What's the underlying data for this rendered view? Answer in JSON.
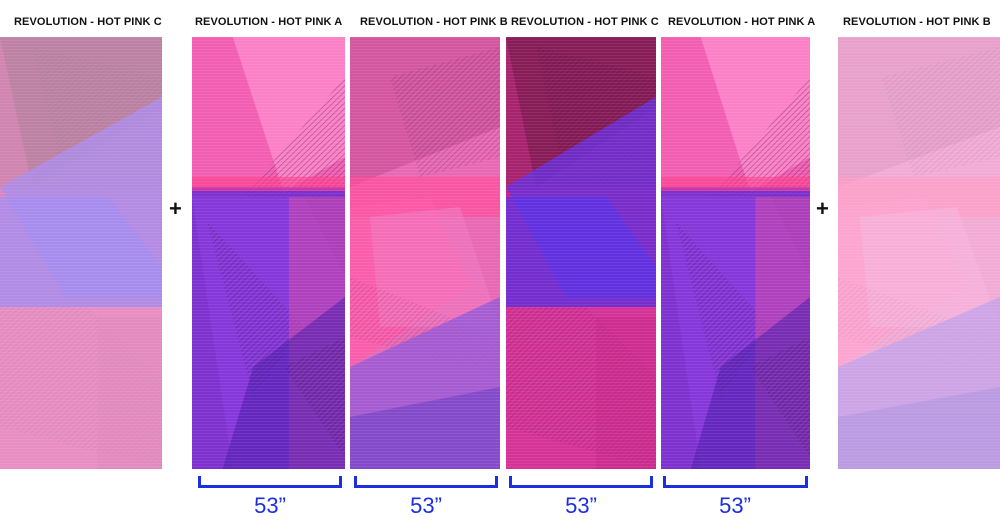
{
  "panels": [
    {
      "label": "REVOLUTION - HOT PINK C",
      "variant": "C",
      "faded": true
    },
    {
      "label": "REVOLUTION - HOT PINK A",
      "variant": "A",
      "faded": false
    },
    {
      "label": "REVOLUTION - HOT PINK B",
      "variant": "B",
      "faded": false
    },
    {
      "label": "REVOLUTION - HOT PINK C",
      "variant": "C",
      "faded": false
    },
    {
      "label": "REVOLUTION - HOT PINK A",
      "variant": "A",
      "faded": false
    },
    {
      "label": "REVOLUTION - HOT PINK B",
      "variant": "B",
      "faded": true
    }
  ],
  "plus_sign": "+",
  "width_label": "53”",
  "colors": {
    "hot_pink": "#e83ea0",
    "magenta": "#c4218a",
    "violet": "#6b2fd6",
    "lilac": "#b58de8",
    "dimension_blue": "#1b2fe0"
  }
}
